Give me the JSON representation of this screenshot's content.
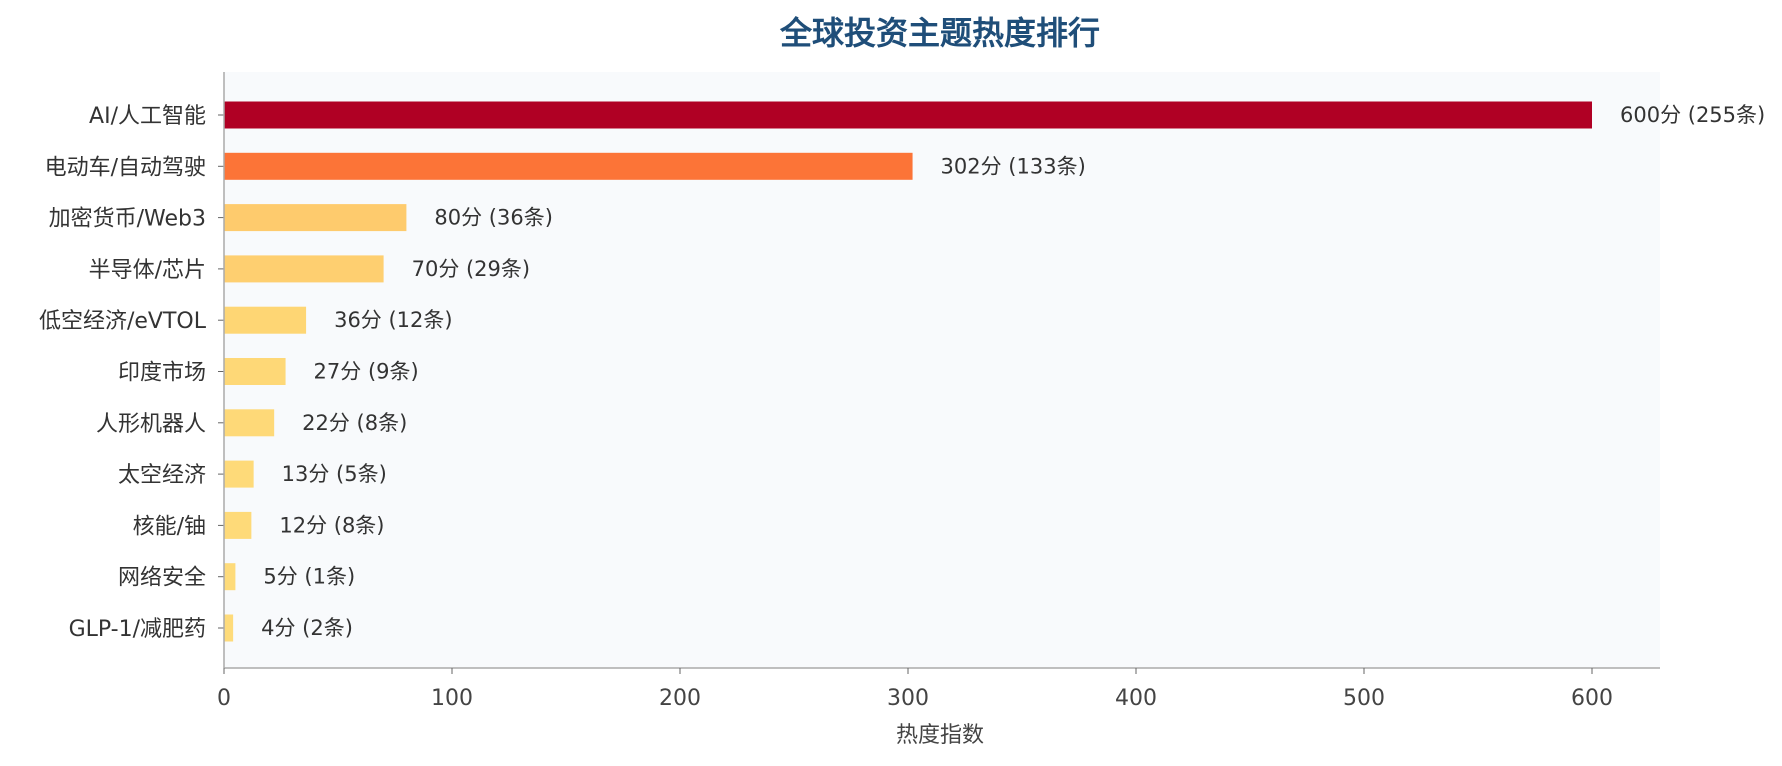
{
  "chart_data": {
    "type": "bar",
    "orientation": "horizontal",
    "title": "全球投资主题热度排行",
    "xlabel": "热度指数",
    "ylabel": "",
    "xlim": [
      0,
      630
    ],
    "x_ticks": [
      "0",
      "100",
      "200",
      "300",
      "400",
      "500",
      "600"
    ],
    "grid": false,
    "categories": [
      "AI/人工智能",
      "电动车/自动驾驶",
      "加密货币/Web3",
      "半导体/芯片",
      "低空经济/eVTOL",
      "印度市场",
      "人形机器人",
      "太空经济",
      "核能/铀",
      "网络安全",
      "GLP-1/减肥药"
    ],
    "values": [
      600,
      302,
      80,
      70,
      36,
      27,
      22,
      13,
      12,
      5,
      4
    ],
    "data_labels": [
      "600分 (255条)",
      "302分 (133条)",
      "80分 (36条)",
      "70分 (29条)",
      "36分 (12条)",
      "27分 (9条)",
      "22分 (8条)",
      "13分 (5条)",
      "12分 (8条)",
      "5分 (1条)",
      "4分 (2条)"
    ],
    "colors": [
      "#b00024",
      "#fc7437",
      "#fecb6d",
      "#fecf70",
      "#fed674",
      "#fed877",
      "#fed978",
      "#feda79",
      "#feda79",
      "#fedb7a",
      "#fedb7a"
    ],
    "plot_background": "#f8fafc",
    "title_color": "#1f4e79"
  }
}
